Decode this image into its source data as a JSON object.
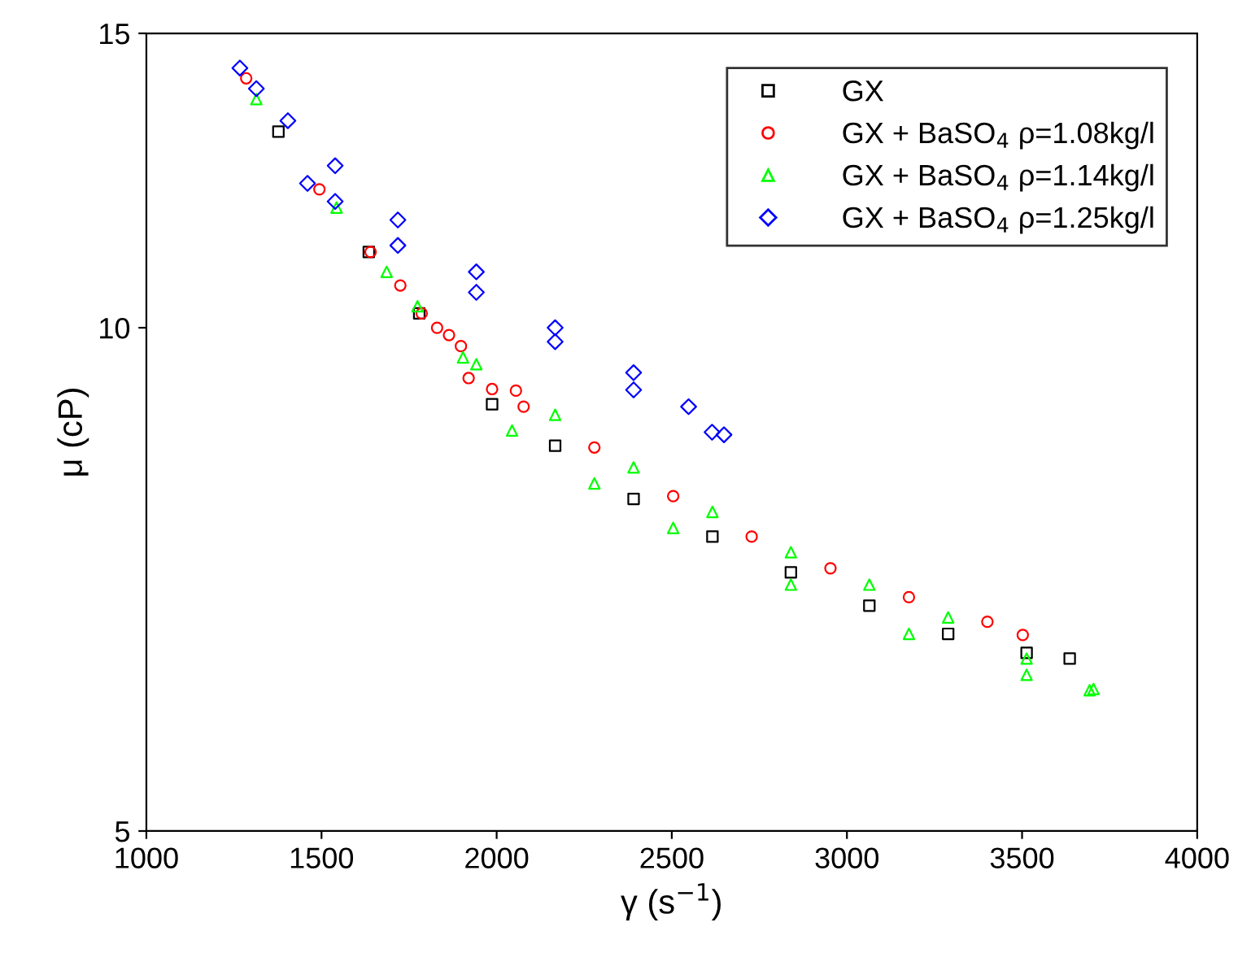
{
  "chart_data": {
    "type": "scatter",
    "xlabel": "γ (s$^{−1}$)",
    "ylabel": "μ (cP)",
    "log": "y",
    "xlim": [
      1000,
      4000
    ],
    "xticks": [
      1000,
      1500,
      2000,
      2500,
      3000,
      3500,
      4000
    ],
    "ylim": [
      5,
      15
    ],
    "yticks": [
      5,
      10,
      15
    ],
    "grid": false,
    "legend": "top right",
    "series": [
      {
        "name": "GX",
        "color": "#000000",
        "marker": "square",
        "x": [
          1377,
          1635,
          1779,
          1987,
          2167,
          2391,
          2616,
          2840,
          3064,
          3289,
          3513,
          3636
        ],
        "values": [
          13.1,
          11.1,
          10.2,
          9.0,
          8.5,
          7.9,
          7.5,
          7.14,
          6.82,
          6.56,
          6.39,
          6.34
        ]
      },
      {
        "name": "GX + BaSO$_{4}$ ρ=1.08kg/l",
        "color": "#ff0000",
        "marker": "circle",
        "x": [
          1285,
          1494,
          1640,
          1725,
          1786,
          1830,
          1864,
          1898,
          2055,
          2279,
          2504,
          2728,
          2953,
          3177,
          3401,
          3502,
          1920,
          1987,
          2077
        ],
        "values": [
          14.1,
          12.1,
          11.1,
          10.6,
          10.2,
          10.0,
          9.9,
          9.75,
          9.17,
          8.48,
          7.93,
          7.5,
          7.18,
          6.9,
          6.67,
          6.55,
          9.33,
          9.19,
          8.97
        ]
      },
      {
        "name": "GX + BaSO$_{4}$ ρ=1.14kg/l",
        "color": "#00ff00",
        "marker": "triangle",
        "x": [
          1314,
          1543,
          1686,
          1774,
          1904,
          1942,
          2167,
          2391,
          2616,
          2840,
          3064,
          3289,
          3513,
          3704,
          2044,
          2279,
          2504,
          2840,
          3177,
          3513,
          3693
        ],
        "values": [
          13.7,
          11.8,
          10.8,
          10.3,
          9.6,
          9.51,
          8.87,
          8.25,
          7.76,
          7.34,
          7.02,
          6.71,
          6.34,
          6.08,
          8.68,
          8.07,
          7.59,
          7.02,
          6.56,
          6.2,
          6.07
        ]
      },
      {
        "name": "GX + BaSO$_{4}$ ρ=1.25kg/l",
        "color": "#0000ff",
        "marker": "diamond",
        "x": [
          1267,
          1314,
          1404,
          1539,
          1718,
          1942,
          2167,
          2391,
          2548,
          2649,
          2615,
          2391,
          2167,
          1942,
          1718,
          1539,
          1460
        ],
        "values": [
          14.3,
          13.9,
          13.3,
          12.5,
          11.6,
          10.8,
          10.0,
          9.4,
          8.97,
          8.63,
          8.66,
          9.18,
          9.81,
          10.5,
          11.2,
          11.9,
          12.2
        ]
      }
    ]
  }
}
